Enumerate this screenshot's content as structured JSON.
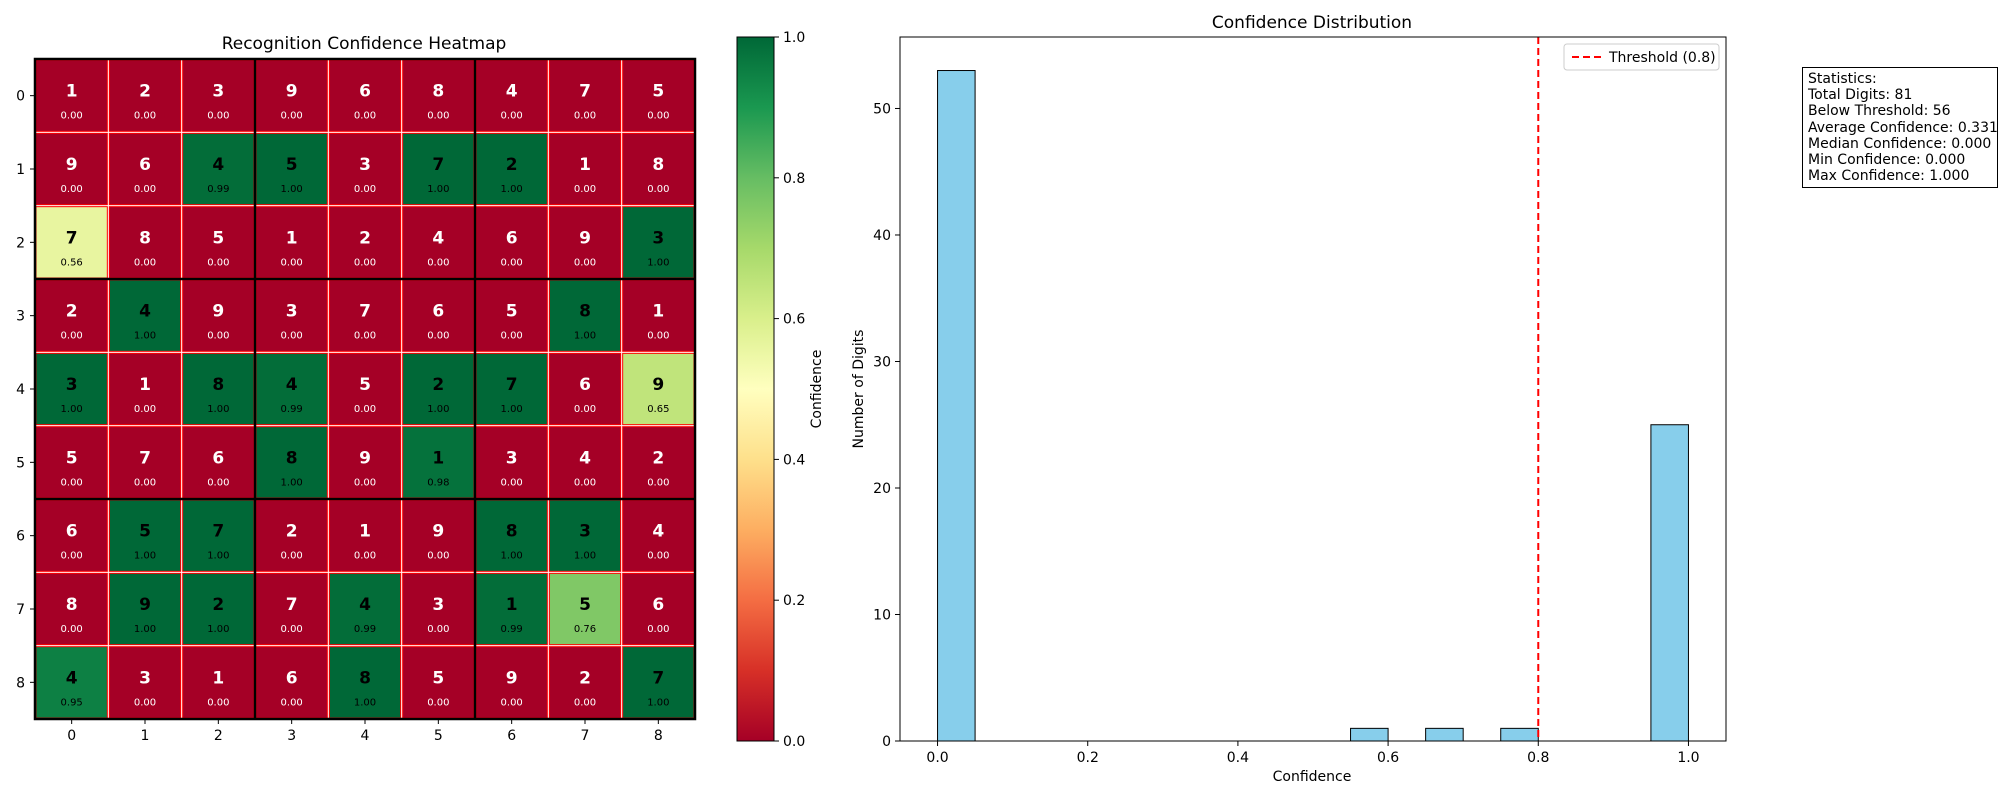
{
  "heatmap": {
    "title": "Recognition Confidence Heatmap",
    "colorbar_label": "Confidence",
    "colorbar_ticks": [
      "0.0",
      "0.2",
      "0.4",
      "0.6",
      "0.8",
      "1.0"
    ],
    "row_labels": [
      "0",
      "1",
      "2",
      "3",
      "4",
      "5",
      "6",
      "7",
      "8"
    ],
    "col_labels": [
      "0",
      "1",
      "2",
      "3",
      "4",
      "5",
      "6",
      "7",
      "8"
    ]
  },
  "histogram": {
    "title": "Confidence Distribution",
    "xlabel": "Confidence",
    "ylabel": "Number of Digits",
    "legend_label": "Threshold (0.8)",
    "x_ticks": [
      "0.0",
      "0.2",
      "0.4",
      "0.6",
      "0.8",
      "1.0"
    ],
    "y_ticks": [
      "0",
      "10",
      "20",
      "30",
      "40",
      "50"
    ]
  },
  "stats": {
    "title": "Statistics:",
    "total": "Total Digits: 81",
    "below": "Below Threshold: 56",
    "average": "Average Confidence: 0.331",
    "median": "Median Confidence: 0.000",
    "min": "Min Confidence: 0.000",
    "max": "Max Confidence: 1.000"
  },
  "colors": {
    "hist_fill": "#87ceeb",
    "threshold_line": "#ff0000",
    "cell_border": "#ff0000",
    "cmap_stops": [
      "#a50026",
      "#d73027",
      "#f46d43",
      "#fdae61",
      "#fee08b",
      "#ffffbf",
      "#d9ef8b",
      "#a6d96a",
      "#66bd63",
      "#1a9850",
      "#006837"
    ]
  },
  "chart_data": [
    {
      "type": "heatmap",
      "title": "Recognition Confidence Heatmap",
      "xlabel": "",
      "ylabel": "",
      "colorbar_label": "Confidence",
      "value_range": [
        0,
        1
      ],
      "colormap": "RdYlGn",
      "digits": [
        [
          1,
          2,
          3,
          9,
          6,
          8,
          4,
          7,
          5
        ],
        [
          9,
          6,
          4,
          5,
          3,
          7,
          2,
          1,
          8
        ],
        [
          7,
          8,
          5,
          1,
          2,
          4,
          6,
          9,
          3
        ],
        [
          2,
          4,
          9,
          3,
          7,
          6,
          5,
          8,
          1
        ],
        [
          3,
          1,
          8,
          4,
          5,
          2,
          7,
          6,
          9
        ],
        [
          5,
          7,
          6,
          8,
          9,
          1,
          3,
          4,
          2
        ],
        [
          6,
          5,
          7,
          2,
          1,
          9,
          8,
          3,
          4
        ],
        [
          8,
          9,
          2,
          7,
          4,
          3,
          1,
          5,
          6
        ],
        [
          4,
          3,
          1,
          6,
          8,
          5,
          9,
          2,
          7
        ]
      ],
      "confidence_labels": [
        [
          "0.00",
          "0.00",
          "0.00",
          "0.00",
          "0.00",
          "0.00",
          "0.00",
          "0.00",
          "0.00"
        ],
        [
          "0.00",
          "0.00",
          "0.99",
          "1.00",
          "0.00",
          "1.00",
          "1.00",
          "0.00",
          "0.00"
        ],
        [
          "0.56",
          "0.00",
          "0.00",
          "0.00",
          "0.00",
          "0.00",
          "0.00",
          "0.00",
          "1.00"
        ],
        [
          "0.00",
          "1.00",
          "0.00",
          "0.00",
          "0.00",
          "0.00",
          "0.00",
          "1.00",
          "0.00"
        ],
        [
          "1.00",
          "0.00",
          "1.00",
          "0.99",
          "0.00",
          "1.00",
          "1.00",
          "0.00",
          "0.65"
        ],
        [
          "0.00",
          "0.00",
          "0.00",
          "1.00",
          "0.00",
          "0.98",
          "0.00",
          "0.00",
          "0.00"
        ],
        [
          "0.00",
          "1.00",
          "1.00",
          "0.00",
          "0.00",
          "0.00",
          "1.00",
          "1.00",
          "0.00"
        ],
        [
          "0.00",
          "1.00",
          "1.00",
          "0.00",
          "0.99",
          "0.00",
          "0.99",
          "0.76",
          "0.00"
        ],
        [
          "0.95",
          "0.00",
          "0.00",
          "0.00",
          "1.00",
          "0.00",
          "0.00",
          "0.00",
          "1.00"
        ]
      ]
    },
    {
      "type": "bar",
      "title": "Confidence Distribution",
      "xlabel": "Confidence",
      "ylabel": "Number of Digits",
      "xlim": [
        -0.05,
        1.05
      ],
      "ylim": [
        0,
        55.65
      ],
      "bins": [
        {
          "start": 0.0,
          "end": 0.05,
          "count": 53
        },
        {
          "start": 0.55,
          "end": 0.6,
          "count": 1
        },
        {
          "start": 0.65,
          "end": 0.7,
          "count": 1
        },
        {
          "start": 0.75,
          "end": 0.8,
          "count": 1
        },
        {
          "start": 0.95,
          "end": 1.0,
          "count": 25
        }
      ],
      "threshold": 0.8,
      "legend": {
        "position": "upper right",
        "entries": [
          "Threshold (0.8)"
        ]
      }
    }
  ]
}
